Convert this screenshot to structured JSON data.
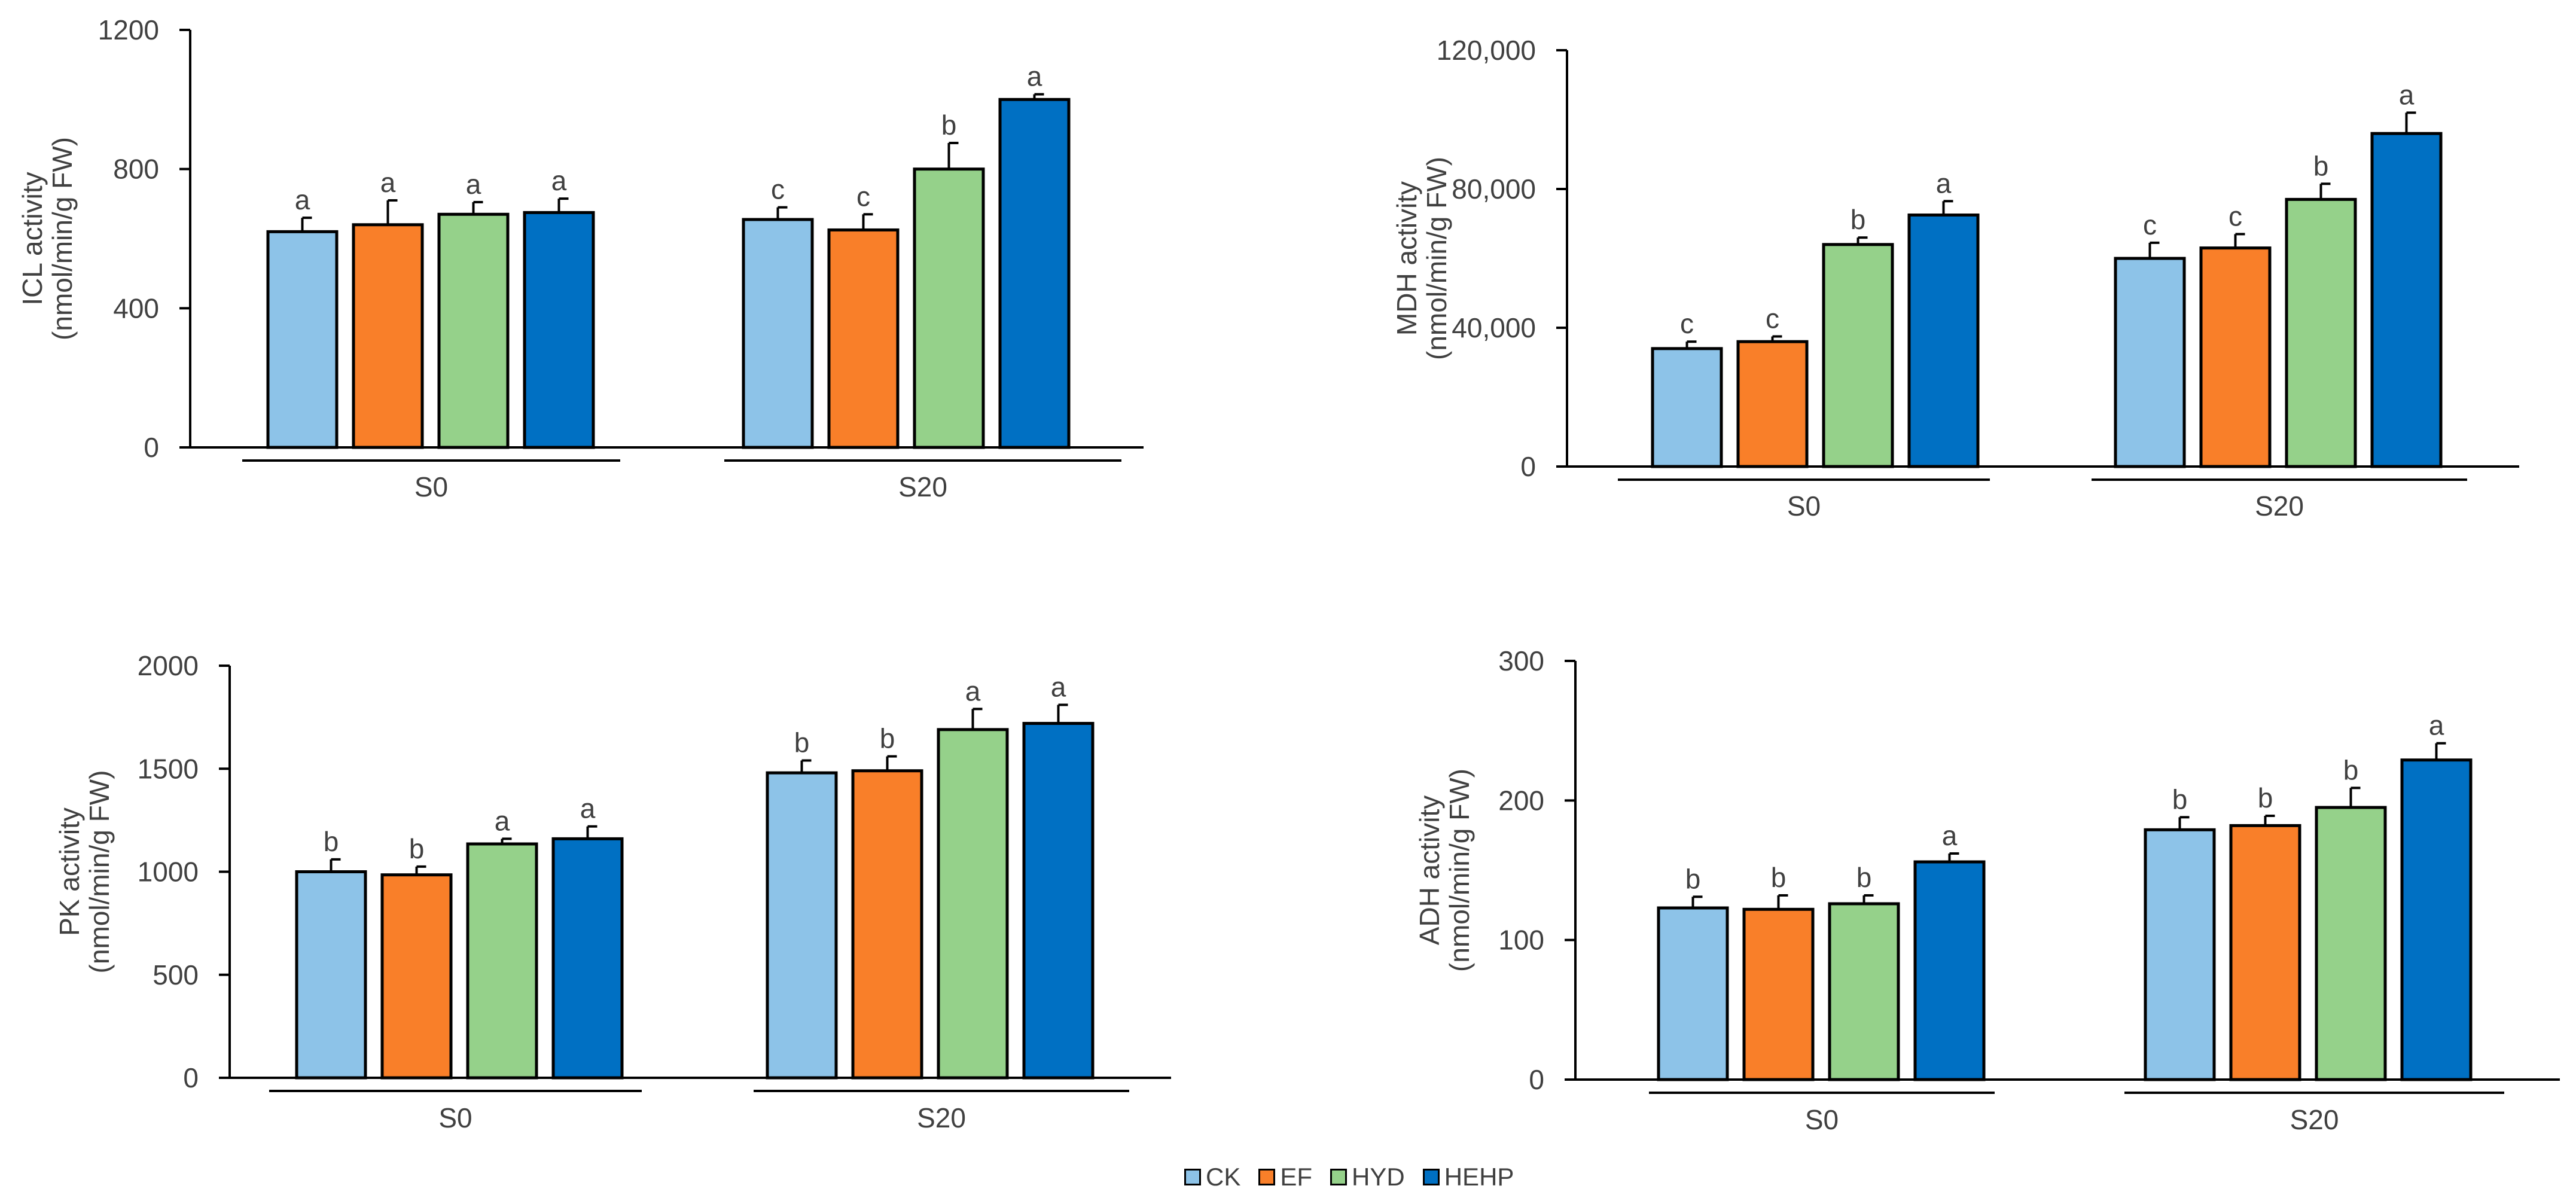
{
  "legend": [
    {
      "label": "CK",
      "color": "#8DC3E8"
    },
    {
      "label": "EF",
      "color": "#F97F29"
    },
    {
      "label": "HYD",
      "color": "#95D18A"
    },
    {
      "label": "HEHP",
      "color": "#0070C3"
    }
  ],
  "chart_data": [
    {
      "type": "bar",
      "ylabel": [
        "ICL activity",
        "(nmol/min/g FW)"
      ],
      "ylim": [
        0,
        1200
      ],
      "yticks": [
        0,
        400,
        800,
        1200
      ],
      "tick_labels": [
        "0",
        "400",
        "800",
        "1200"
      ],
      "categories": [
        "S0",
        "S20"
      ],
      "series": [
        {
          "name": "CK",
          "values": [
            620,
            655
          ],
          "errors": [
            40,
            35
          ],
          "letters": [
            "a",
            "c"
          ]
        },
        {
          "name": "EF",
          "values": [
            640,
            625
          ],
          "errors": [
            70,
            45
          ],
          "letters": [
            "a",
            "c"
          ]
        },
        {
          "name": "HYD",
          "values": [
            670,
            800
          ],
          "errors": [
            35,
            75
          ],
          "letters": [
            "a",
            "b"
          ]
        },
        {
          "name": "HEHP",
          "values": [
            675,
            1000
          ],
          "errors": [
            40,
            15
          ],
          "letters": [
            "a",
            "a"
          ]
        }
      ]
    },
    {
      "type": "bar",
      "ylabel": [
        "MDH activity",
        "(nmol/min/g FW)"
      ],
      "ylim": [
        0,
        120000
      ],
      "yticks": [
        0,
        40000,
        80000,
        120000
      ],
      "tick_labels": [
        "0",
        "40,000",
        "80,000",
        "120,000"
      ],
      "categories": [
        "S0",
        "S20"
      ],
      "series": [
        {
          "name": "CK",
          "values": [
            34000,
            60000
          ],
          "errors": [
            2000,
            4500
          ],
          "letters": [
            "c",
            "c"
          ]
        },
        {
          "name": "EF",
          "values": [
            36000,
            63000
          ],
          "errors": [
            1500,
            4000
          ],
          "letters": [
            "c",
            "c"
          ]
        },
        {
          "name": "HYD",
          "values": [
            64000,
            77000
          ],
          "errors": [
            2000,
            4500
          ],
          "letters": [
            "b",
            "b"
          ]
        },
        {
          "name": "HEHP",
          "values": [
            72500,
            96000
          ],
          "errors": [
            4000,
            6000
          ],
          "letters": [
            "a",
            "a"
          ]
        }
      ]
    },
    {
      "type": "bar",
      "ylabel": [
        "PK activity",
        "(nmol/min/g FW)"
      ],
      "ylim": [
        0,
        2000
      ],
      "yticks": [
        0,
        500,
        1000,
        1500,
        2000
      ],
      "tick_labels": [
        "0",
        "500",
        "1000",
        "1500",
        "2000"
      ],
      "categories": [
        "S0",
        "S20"
      ],
      "series": [
        {
          "name": "CK",
          "values": [
            1000,
            1480
          ],
          "errors": [
            60,
            60
          ],
          "letters": [
            "b",
            "b"
          ]
        },
        {
          "name": "EF",
          "values": [
            985,
            1490
          ],
          "errors": [
            40,
            70
          ],
          "letters": [
            "b",
            "b"
          ]
        },
        {
          "name": "HYD",
          "values": [
            1135,
            1690
          ],
          "errors": [
            25,
            100
          ],
          "letters": [
            "a",
            "a"
          ]
        },
        {
          "name": "HEHP",
          "values": [
            1160,
            1720
          ],
          "errors": [
            60,
            90
          ],
          "letters": [
            "a",
            "a"
          ]
        }
      ]
    },
    {
      "type": "bar",
      "ylabel": [
        "ADH activity",
        "(nmol/min/g FW)"
      ],
      "ylim": [
        0,
        300
      ],
      "yticks": [
        0,
        100,
        200,
        300
      ],
      "tick_labels": [
        "0",
        "100",
        "200",
        "300"
      ],
      "categories": [
        "S0",
        "S20"
      ],
      "series": [
        {
          "name": "CK",
          "values": [
            123,
            179
          ],
          "errors": [
            8,
            9
          ],
          "letters": [
            "b",
            "b"
          ]
        },
        {
          "name": "EF",
          "values": [
            122,
            182
          ],
          "errors": [
            10,
            7
          ],
          "letters": [
            "b",
            "b"
          ]
        },
        {
          "name": "HYD",
          "values": [
            126,
            195
          ],
          "errors": [
            6,
            14
          ],
          "letters": [
            "b",
            "b"
          ]
        },
        {
          "name": "HEHP",
          "values": [
            156,
            229
          ],
          "errors": [
            6,
            12
          ],
          "letters": [
            "a",
            "a"
          ]
        }
      ]
    }
  ]
}
